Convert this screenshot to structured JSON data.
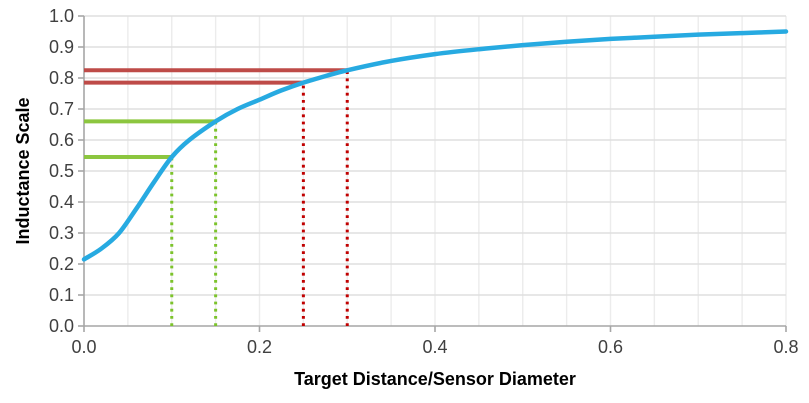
{
  "chart_data": {
    "type": "line",
    "title": "",
    "xlabel": "Target Distance/Sensor Diameter",
    "ylabel": "Inductance Scale",
    "xlim": [
      0.0,
      0.8
    ],
    "ylim": [
      0.0,
      1.0
    ],
    "x_ticks": [
      0.0,
      0.2,
      0.4,
      0.6,
      0.8
    ],
    "x_tick_labels": [
      "0.0",
      "0.2",
      "0.4",
      "0.6",
      "0.8"
    ],
    "y_ticks": [
      0.0,
      0.1,
      0.2,
      0.3,
      0.4,
      0.5,
      0.6,
      0.7,
      0.8,
      0.9,
      1.0
    ],
    "y_tick_labels": [
      "0.0",
      "0.1",
      "0.2",
      "0.3",
      "0.4",
      "0.5",
      "0.6",
      "0.7",
      "0.8",
      "0.9",
      "1.0"
    ],
    "x_minor_grid_step": 0.05,
    "y_major_grid_step": 0.1,
    "grid": true,
    "legend": "none",
    "series": [
      {
        "name": "inductance-scale-curve",
        "color": "#27AAE1",
        "x": [
          0.0,
          0.02,
          0.04,
          0.06,
          0.08,
          0.1,
          0.12,
          0.15,
          0.175,
          0.2,
          0.225,
          0.25,
          0.275,
          0.3,
          0.35,
          0.4,
          0.45,
          0.5,
          0.55,
          0.6,
          0.65,
          0.7,
          0.75,
          0.8
        ],
        "y": [
          0.215,
          0.25,
          0.3,
          0.38,
          0.465,
          0.545,
          0.6,
          0.66,
          0.7,
          0.73,
          0.76,
          0.785,
          0.806,
          0.825,
          0.855,
          0.877,
          0.893,
          0.906,
          0.917,
          0.926,
          0.933,
          0.94,
          0.945,
          0.95
        ]
      }
    ],
    "annotations": {
      "reference_lines": [
        {
          "id": "red-upper",
          "y": 0.825,
          "x_from": 0.0,
          "x_to": 0.3,
          "color": "#BE4B48",
          "style": "solid"
        },
        {
          "id": "red-lower",
          "y": 0.785,
          "x_from": 0.0,
          "x_to": 0.25,
          "color": "#BE4B48",
          "style": "solid"
        },
        {
          "id": "green-upper",
          "y": 0.66,
          "x_from": 0.0,
          "x_to": 0.15,
          "color": "#8CC63F",
          "style": "solid"
        },
        {
          "id": "green-lower",
          "y": 0.545,
          "x_from": 0.0,
          "x_to": 0.1,
          "color": "#8CC63F",
          "style": "solid"
        }
      ],
      "droplines": [
        {
          "id": "red-at-0.30",
          "x": 0.3,
          "y_from": 0.0,
          "y_to": 0.825,
          "color": "#C00000",
          "style": "dotted"
        },
        {
          "id": "red-at-0.25",
          "x": 0.25,
          "y_from": 0.0,
          "y_to": 0.785,
          "color": "#C00000",
          "style": "dotted"
        },
        {
          "id": "green-at-0.15",
          "x": 0.15,
          "y_from": 0.0,
          "y_to": 0.66,
          "color": "#7CC32B",
          "style": "dotted"
        },
        {
          "id": "green-at-0.10",
          "x": 0.1,
          "y_from": 0.0,
          "y_to": 0.545,
          "color": "#7CC32B",
          "style": "dotted"
        }
      ]
    },
    "colors": {
      "curve": "#27AAE1",
      "solid_red": "#BE4B48",
      "dotted_red": "#C00000",
      "solid_green": "#8CC63F",
      "dotted_green": "#7CC32B",
      "grid_horizontal": "#DFDFDF",
      "grid_vertical": "#ECECEC",
      "axis": "#A6A6A6",
      "tick_label": "#404040",
      "axis_title": "#000000",
      "background": "#FFFFFF"
    }
  }
}
